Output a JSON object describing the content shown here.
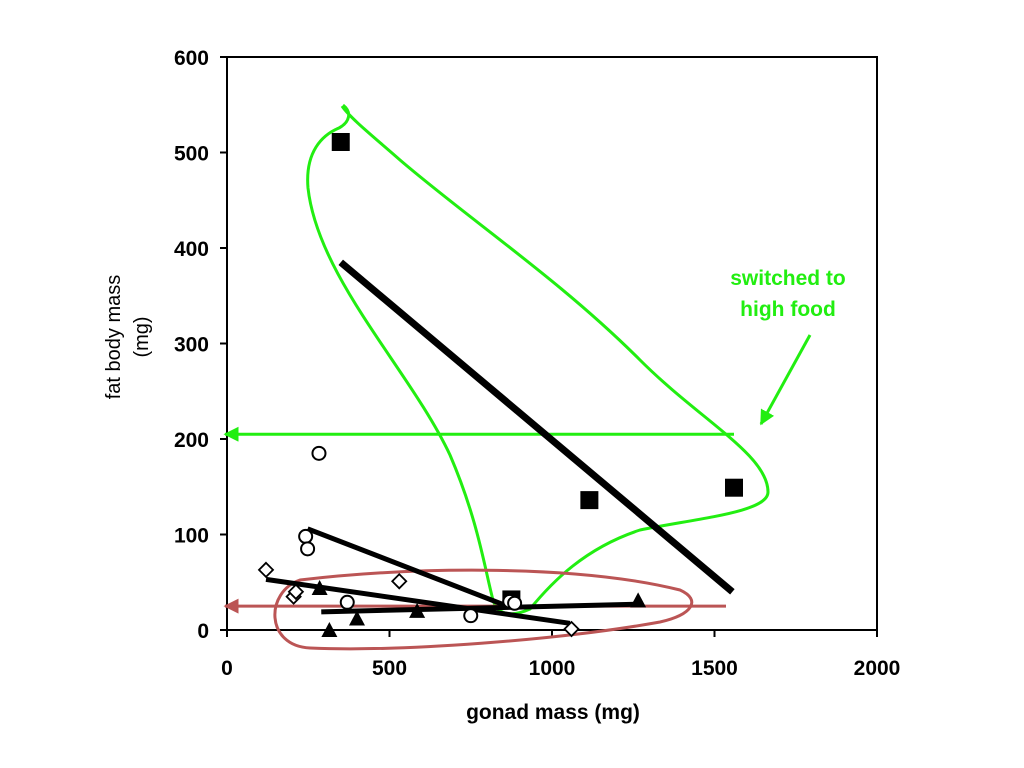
{
  "chart_data": {
    "type": "scatter",
    "xlabel": "gonad mass (mg)",
    "ylabel": [
      "fat body mass",
      "(mg)"
    ],
    "xlim": [
      0,
      2000
    ],
    "ylim": [
      0,
      600
    ],
    "x_ticks": [
      "0",
      "500",
      "1000",
      "1500",
      "2000"
    ],
    "y_ticks": [
      "0",
      "100",
      "200",
      "300",
      "400",
      "500",
      "600"
    ],
    "x_tick_values": [
      0,
      500,
      1000,
      1500,
      2000
    ],
    "y_tick_values": [
      0,
      100,
      200,
      300,
      400,
      500,
      600
    ],
    "grid": false,
    "legend": "none",
    "series": [
      {
        "marker": "filled-square",
        "points": [
          [
            350,
            511
          ],
          [
            1115,
            136
          ],
          [
            1560,
            149
          ],
          [
            875,
            32
          ]
        ],
        "trendline": [
          [
            350,
            385
          ],
          [
            1555,
            40
          ]
        ]
      },
      {
        "marker": "open-circle",
        "points": [
          [
            283,
            185
          ],
          [
            242,
            98
          ],
          [
            248,
            85
          ],
          [
            370,
            29
          ],
          [
            750,
            15
          ],
          [
            870,
            30
          ],
          [
            885,
            28
          ]
        ],
        "trendline": [
          [
            248,
            106
          ],
          [
            870,
            24
          ]
        ]
      },
      {
        "marker": "open-diamond",
        "points": [
          [
            120,
            63
          ],
          [
            205,
            35
          ],
          [
            212,
            40
          ],
          [
            530,
            51
          ],
          [
            1060,
            1
          ]
        ],
        "trendline": [
          [
            120,
            53
          ],
          [
            1055,
            7
          ]
        ]
      },
      {
        "marker": "filled-triangle",
        "points": [
          [
            285,
            44
          ],
          [
            315,
            0
          ],
          [
            400,
            12
          ],
          [
            585,
            20
          ],
          [
            1265,
            31
          ]
        ],
        "trendline": [
          [
            290,
            19
          ],
          [
            1270,
            27
          ]
        ]
      }
    ],
    "annotations": {
      "switched_label": [
        "switched to",
        "high food"
      ],
      "green_color": "#22ee11",
      "red_color": "#bb5555",
      "green_level": 205,
      "red_level": 25
    }
  }
}
